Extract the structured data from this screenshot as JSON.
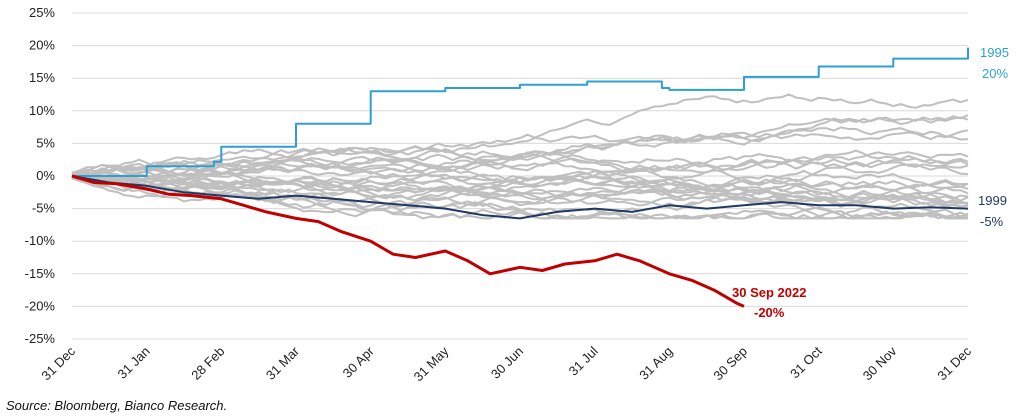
{
  "chart_data": {
    "type": "line",
    "title": "",
    "xlabel": "",
    "ylabel": "",
    "ylim": [
      -25,
      25
    ],
    "y_ticks": [
      "25%",
      "20%",
      "15%",
      "10%",
      "5%",
      "0%",
      "-5%",
      "-10%",
      "-15%",
      "-20%",
      "-25%"
    ],
    "y_tick_values": [
      25,
      20,
      15,
      10,
      5,
      0,
      -5,
      -10,
      -15,
      -20,
      -25
    ],
    "x_ticks": [
      "31 Dec",
      "31 Jan",
      "28 Feb",
      "31 Mar",
      "30 Apr",
      "31 May",
      "30 Jun",
      "31 Jul",
      "31 Aug",
      "30 Sep",
      "31 Oct",
      "30 Nov",
      "31 Dec"
    ],
    "grid": "horizontal",
    "colors": {
      "highlight_2022": "#c00000",
      "year_1995": "#2e9fd3",
      "year_1999": "#1f3864",
      "other_years": "#bfbfbf"
    },
    "series": [
      {
        "name": "1995",
        "color": "#2e9fd3",
        "x": [
          0,
          1,
          1.9,
          2,
          2.9,
          3,
          3.9,
          4,
          4.9,
          5,
          6,
          6.9,
          7,
          7.9,
          8,
          8.9,
          9,
          9.9,
          10,
          10.9,
          11,
          11.9,
          12
        ],
        "values": [
          0,
          1.5,
          2.2,
          4.5,
          4.5,
          8,
          8,
          13,
          13,
          13.5,
          14,
          14.5,
          14.5,
          13.5,
          13.2,
          13.2,
          15.2,
          15.2,
          16.8,
          16.8,
          18,
          18,
          19.7
        ]
      },
      {
        "name": "1999",
        "color": "#1f3864",
        "x": [
          0,
          0.5,
          1,
          1.5,
          2,
          2.5,
          3,
          3.5,
          4,
          4.5,
          5,
          5.5,
          6,
          6.5,
          7,
          7.5,
          8,
          8.5,
          9,
          9.5,
          10,
          10.5,
          11,
          11.5,
          12
        ],
        "values": [
          0,
          -1,
          -1.5,
          -2.5,
          -3,
          -3.5,
          -3,
          -3.5,
          -4,
          -4.5,
          -5,
          -6,
          -6.5,
          -5.5,
          -5,
          -5.5,
          -4.5,
          -5,
          -4.5,
          -4,
          -4.5,
          -4.5,
          -5,
          -4.8,
          -5
        ]
      },
      {
        "name": "2022",
        "color": "#c00000",
        "x": [
          0,
          0.3,
          0.6,
          1,
          1.3,
          1.6,
          2,
          2.3,
          2.6,
          3,
          3.3,
          3.6,
          4,
          4.3,
          4.6,
          5,
          5.3,
          5.6,
          6,
          6.3,
          6.6,
          7,
          7.3,
          7.6,
          8,
          8.3,
          8.6,
          8.9,
          9
        ],
        "values": [
          0,
          -1,
          -1.2,
          -2,
          -2.8,
          -3,
          -3.5,
          -4.5,
          -5.5,
          -6.5,
          -7,
          -8.5,
          -10,
          -12,
          -12.5,
          -11.5,
          -13,
          -15,
          -14,
          -14.5,
          -13.5,
          -13,
          -12,
          -13,
          -15,
          -16,
          -17.5,
          -19.5,
          -20
        ]
      }
    ],
    "labels": {
      "y1995": "1995",
      "y1995_value": "20%",
      "y1999": "1999",
      "y1999_value": "-5%",
      "y2022": "30 Sep 2022",
      "y2022_value": "-20%"
    },
    "source": "Source: Bloomberg, Bianco Research."
  }
}
